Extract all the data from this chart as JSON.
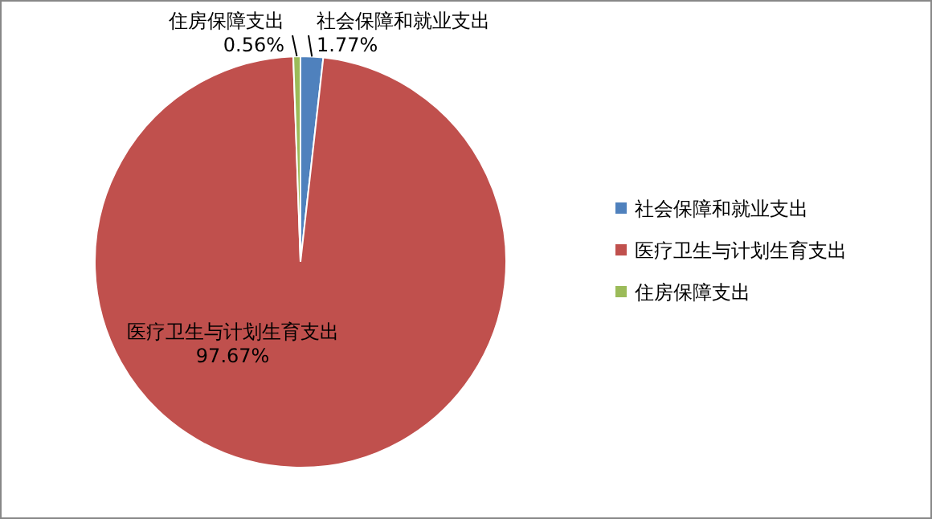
{
  "chart_data": {
    "type": "pie",
    "categories": [
      "社会保障和就业支出",
      "医疗卫生与计划生育支出",
      "住房保障支出"
    ],
    "values": [
      1.77,
      97.67,
      0.56
    ],
    "colors": [
      "#4f81bd",
      "#c0504d",
      "#9bbb59"
    ],
    "value_labels": [
      "1.77%",
      "97.67%",
      "0.56%"
    ],
    "legend": "right"
  }
}
